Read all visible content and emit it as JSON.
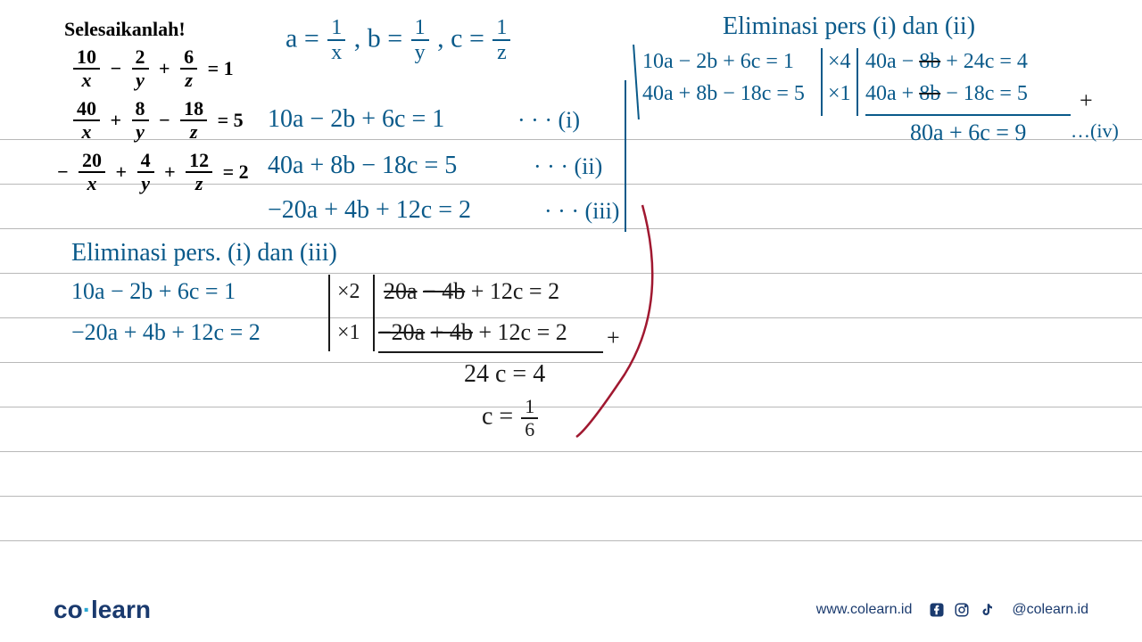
{
  "problem": {
    "title": "Selesaikanlah!",
    "eq1": {
      "terms": [
        "10",
        "x",
        "−",
        "2",
        "y",
        "+",
        "6",
        "z",
        "= 1"
      ]
    },
    "eq2": {
      "terms": [
        "40",
        "x",
        "+",
        "8",
        "y",
        "−",
        "18",
        "z",
        "= 5"
      ]
    },
    "eq3": {
      "terms": [
        "20",
        "x",
        "+",
        "4",
        "y",
        "+",
        "12",
        "z",
        "= 2"
      ],
      "leading_minus": "−"
    }
  },
  "substitution": "a = 1⁄x , b = 1⁄y , c = 1⁄z",
  "subst_parts": {
    "a_eq": "a =",
    "one_x_num": "1",
    "one_x_den": "x",
    "comma1": ", b =",
    "one_y_num": "1",
    "one_y_den": "y",
    "comma2": ", c =",
    "one_z_num": "1",
    "one_z_den": "z"
  },
  "system": {
    "i": "10a − 2b + 6c  = 1",
    "i_tag": "· · ·  (i)",
    "ii": "40a + 8b − 18c  = 5",
    "ii_tag": "· · · (ii)",
    "iii": "−20a + 4b + 12c  = 2",
    "iii_tag": "· · · (iii)"
  },
  "elim12": {
    "title": "Eliminasi pers (i) dan (ii)",
    "row1_left": "10a − 2b + 6c = 1",
    "row1_mul": "×4",
    "row1_right": "40a − 8b + 24c = 4",
    "row1_right_strike1": "8b",
    "row2_left": "40a + 8b − 18c = 5",
    "row2_mul": "×1",
    "row2_right": "40a + 8b − 18c = 5",
    "row2_right_strike1": "8b",
    "plus": "+",
    "result": "80a + 6c = 9",
    "result_tag": "…(iv)"
  },
  "elim13": {
    "title": "Eliminasi pers. (i) dan (iii)",
    "row1_left": "10a − 2b + 6c  = 1",
    "row1_mul": "×2",
    "row1_right_a": "20a",
    "row1_right_b": "− 4b",
    "row1_right_rest": "+ 12c = 2",
    "row2_left": "−20a + 4b + 12c = 2",
    "row2_mul": "×1",
    "row2_right_a": "−20a",
    "row2_right_b": "+ 4b",
    "row2_right_rest": "+ 12c = 2",
    "plus": "+",
    "result1": "24 c = 4",
    "result2_lhs": "c =",
    "result2_num": "1",
    "result2_den": "6"
  },
  "ruled_lines_y": [
    156,
    206,
    256,
    306,
    356,
    406,
    456,
    506,
    556,
    606
  ],
  "footer": {
    "logo_co": "co",
    "logo_dot": "·",
    "logo_learn": "learn",
    "url": "www.colearn.id",
    "handle": "@colearn.id"
  },
  "colors": {
    "ink_blue": "#0a5a8a",
    "ink_black": "#1a1a1a",
    "brand_navy": "#1a3a6e",
    "brand_cyan": "#2ba8d4",
    "rule": "#b8b8b8",
    "curve_red": "#a01830"
  }
}
